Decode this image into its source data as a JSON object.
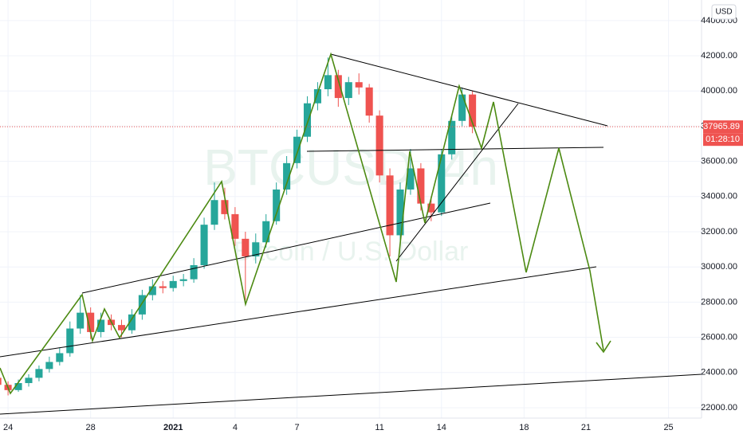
{
  "chart_data": {
    "type": "candlestick",
    "title": "BTCUSD, 4h",
    "subtitle": "Bitcoin / U.S. Dollar",
    "currency": "USD",
    "countdown": "01:28:10",
    "last_price": 37965.89,
    "up_color": "#26a69a",
    "down_color": "#ef5350",
    "x": [
      -0.5,
      0,
      0.5,
      1,
      1.5,
      2,
      2.5,
      3,
      3.5,
      4,
      4.5,
      5,
      5.5,
      6,
      6.5,
      7,
      7.5,
      8,
      8.5,
      9,
      9.5,
      10,
      10.5,
      11,
      11.5,
      12,
      12.5,
      13,
      13.5,
      14,
      14.5,
      15,
      15.5,
      16,
      16.5,
      17,
      17.5,
      18,
      18.5,
      19,
      19.5,
      20,
      20.5,
      21,
      21.5,
      22,
      22.5
    ],
    "open": [
      23700,
      23300,
      23000,
      23400,
      23700,
      24200,
      24600,
      25100,
      26500,
      27400,
      26300,
      27000,
      26700,
      26400,
      27300,
      28400,
      28900,
      28800,
      29200,
      29300,
      30100,
      32400,
      33800,
      33000,
      31600,
      30600,
      31400,
      32600,
      34400,
      35900,
      37400,
      39300,
      40100,
      40900,
      39600,
      40500,
      40200,
      38600,
      35200,
      31800,
      34400,
      35600,
      33600,
      33100,
      36400,
      38300,
      39800
    ],
    "high": [
      23900,
      23500,
      23600,
      23900,
      24400,
      24900,
      25400,
      26900,
      28400,
      27700,
      27400,
      27300,
      27000,
      27600,
      28700,
      29300,
      29200,
      29500,
      29600,
      30500,
      32800,
      34800,
      34500,
      33400,
      32000,
      31900,
      33000,
      34800,
      36300,
      37800,
      39700,
      40500,
      41900,
      41200,
      40800,
      41000,
      40400,
      38900,
      35600,
      34800,
      36700,
      35900,
      34000,
      36700,
      38600,
      40200,
      40000
    ],
    "low": [
      23100,
      22700,
      22900,
      23200,
      23500,
      24000,
      24400,
      24900,
      26200,
      25900,
      26000,
      26400,
      26000,
      26200,
      27000,
      28100,
      28500,
      28600,
      28900,
      29100,
      29900,
      32100,
      32700,
      31200,
      28100,
      30200,
      31100,
      32400,
      34100,
      35600,
      37100,
      38900,
      39700,
      39100,
      39200,
      39800,
      38200,
      34800,
      30600,
      31400,
      34100,
      33200,
      32600,
      32900,
      36100,
      38000,
      37600
    ],
    "close": [
      23300,
      23000,
      23400,
      23700,
      24200,
      24600,
      25100,
      26500,
      27400,
      26300,
      27000,
      26700,
      26400,
      27300,
      28400,
      28900,
      28800,
      29200,
      29300,
      30100,
      32400,
      33800,
      33000,
      31600,
      30600,
      31400,
      32600,
      34400,
      35900,
      37400,
      39300,
      40100,
      40900,
      39600,
      40500,
      40200,
      38600,
      35200,
      31800,
      34400,
      35600,
      33600,
      33100,
      36400,
      38300,
      39800,
      37965.89
    ],
    "xlim": [
      -0.39,
      33.6
    ],
    "xticks": [
      {
        "value": 0,
        "label": "24"
      },
      {
        "value": 4,
        "label": "28"
      },
      {
        "value": 8,
        "label": "2021"
      },
      {
        "value": 11,
        "label": "4"
      },
      {
        "value": 14,
        "label": "7"
      },
      {
        "value": 18,
        "label": "11"
      },
      {
        "value": 21,
        "label": "14"
      },
      {
        "value": 25,
        "label": "18"
      },
      {
        "value": 28,
        "label": "21"
      },
      {
        "value": 32,
        "label": "25"
      }
    ],
    "ylim": [
      21410,
      45170
    ],
    "yticks": [
      {
        "value": 22000,
        "label": "22000.00"
      },
      {
        "value": 24000,
        "label": "24000.00"
      },
      {
        "value": 26000,
        "label": "26000.00"
      },
      {
        "value": 28000,
        "label": "28000.00"
      },
      {
        "value": 30000,
        "label": "30000.00"
      },
      {
        "value": 32000,
        "label": "32000.00"
      },
      {
        "value": 34000,
        "label": "34000.00"
      },
      {
        "value": 36000,
        "label": "36000.00"
      },
      {
        "value": 38000,
        "label": "38000.00"
      },
      {
        "value": 40000,
        "label": "40000.00"
      },
      {
        "value": 42000,
        "label": "42000.00"
      },
      {
        "value": 44000,
        "label": "44000.00"
      }
    ],
    "grid": true
  }
}
